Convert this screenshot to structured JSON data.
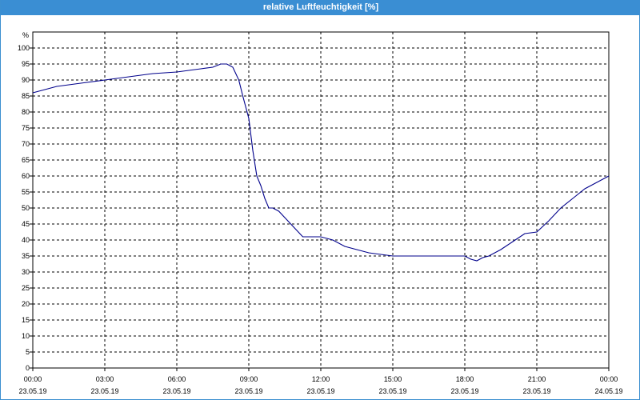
{
  "window": {
    "title": "relative Luftfeuchtigkeit [%]"
  },
  "chart_data": {
    "type": "line",
    "title": "relative Luftfeuchtigkeit [%]",
    "ylabel": "%",
    "ylim": [
      0,
      105
    ],
    "ytick_step": 5,
    "grid": true,
    "x_ticks": [
      {
        "time": "00:00",
        "date": "23.05.19"
      },
      {
        "time": "03:00",
        "date": "23.05.19"
      },
      {
        "time": "06:00",
        "date": "23.05.19"
      },
      {
        "time": "09:00",
        "date": "23.05.19"
      },
      {
        "time": "12:00",
        "date": "23.05.19"
      },
      {
        "time": "15:00",
        "date": "23.05.19"
      },
      {
        "time": "18:00",
        "date": "23.05.19"
      },
      {
        "time": "21:00",
        "date": "23.05.19"
      },
      {
        "time": "00:00",
        "date": "24.05.19"
      }
    ],
    "series": [
      {
        "color": "#00008b",
        "x": [
          "2019-05-23 00:00",
          "2019-05-23 01:00",
          "2019-05-23 02:00",
          "2019-05-23 03:00",
          "2019-05-23 04:00",
          "2019-05-23 05:00",
          "2019-05-23 06:00",
          "2019-05-23 07:00",
          "2019-05-23 07:30",
          "2019-05-23 07:50",
          "2019-05-23 08:05",
          "2019-05-23 08:20",
          "2019-05-23 08:35",
          "2019-05-23 08:45",
          "2019-05-23 09:00",
          "2019-05-23 09:10",
          "2019-05-23 09:20",
          "2019-05-23 09:30",
          "2019-05-23 09:40",
          "2019-05-23 09:50",
          "2019-05-23 10:00",
          "2019-05-23 10:15",
          "2019-05-23 10:30",
          "2019-05-23 10:45",
          "2019-05-23 11:00",
          "2019-05-23 11:15",
          "2019-05-23 11:30",
          "2019-05-23 11:45",
          "2019-05-23 12:00",
          "2019-05-23 12:30",
          "2019-05-23 13:00",
          "2019-05-23 13:30",
          "2019-05-23 14:00",
          "2019-05-23 14:30",
          "2019-05-23 15:00",
          "2019-05-23 15:30",
          "2019-05-23 16:00",
          "2019-05-23 16:30",
          "2019-05-23 17:00",
          "2019-05-23 17:30",
          "2019-05-23 18:00",
          "2019-05-23 18:15",
          "2019-05-23 18:30",
          "2019-05-23 18:45",
          "2019-05-23 19:00",
          "2019-05-23 19:30",
          "2019-05-23 20:00",
          "2019-05-23 20:30",
          "2019-05-23 21:00",
          "2019-05-23 21:30",
          "2019-05-23 22:00",
          "2019-05-23 22:30",
          "2019-05-23 23:00",
          "2019-05-23 23:30",
          "2019-05-24 00:00"
        ],
        "y": [
          86,
          88,
          89,
          90,
          91,
          92,
          92.5,
          93.5,
          94,
          95,
          95,
          94,
          90,
          85,
          78,
          68,
          60,
          57,
          53,
          50,
          50,
          49,
          47,
          45,
          43,
          41,
          41,
          41,
          41,
          40,
          38,
          37,
          36,
          35.5,
          35,
          35,
          35,
          35,
          35,
          35,
          35,
          34,
          33.5,
          34.5,
          35,
          37,
          39.5,
          42,
          42.5,
          46,
          50,
          53,
          56,
          58,
          60
        ]
      }
    ]
  }
}
